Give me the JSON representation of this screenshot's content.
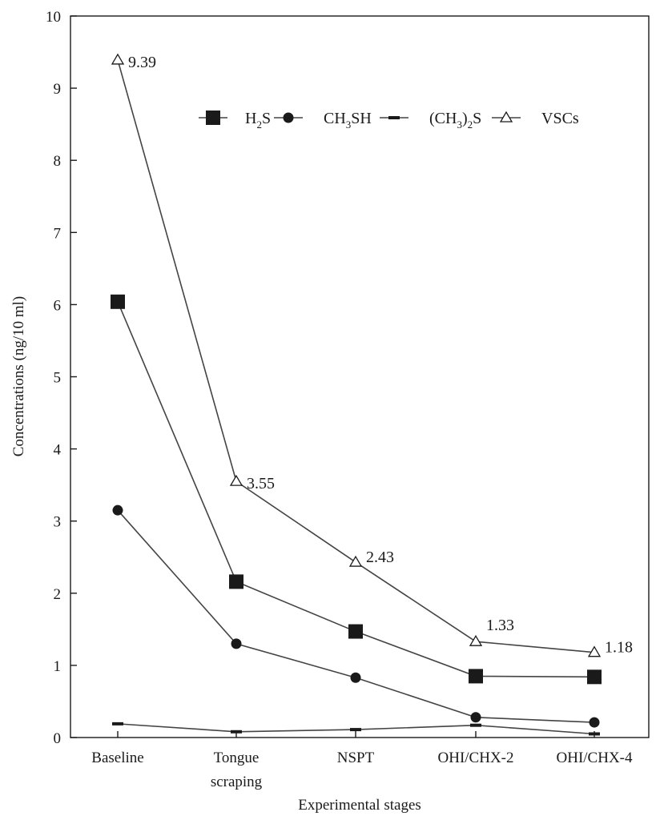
{
  "chart_data": {
    "type": "line",
    "title": "",
    "xlabel": "Experimental stages",
    "ylabel": "Concentrations (ng/10 ml)",
    "ylim": [
      0,
      10
    ],
    "yticks": [
      0,
      1,
      2,
      3,
      4,
      5,
      6,
      7,
      8,
      9,
      10
    ],
    "categories": [
      [
        "Baseline"
      ],
      [
        "Tongue",
        "scraping"
      ],
      [
        "NSPT"
      ],
      [
        "OHI/CHX-2"
      ],
      [
        "OHI/CHX-4"
      ]
    ],
    "series": [
      {
        "name": "H2S",
        "legend_main": "H",
        "legend_sub": "2",
        "legend_tail": "S",
        "marker": "square",
        "values": [
          6.04,
          2.16,
          1.47,
          0.85,
          0.84
        ]
      },
      {
        "name": "CH3SH",
        "legend_main": "CH",
        "legend_sub": "3",
        "legend_tail": "SH",
        "marker": "circle",
        "values": [
          3.15,
          1.3,
          0.83,
          0.28,
          0.21
        ]
      },
      {
        "name": "(CH3)2S",
        "legend_main": "(CH",
        "legend_sub": "3",
        "legend_tail": ")",
        "legend_sub2": "2",
        "legend_tail2": "S",
        "marker": "dash",
        "values": [
          0.19,
          0.08,
          0.11,
          0.17,
          0.05
        ]
      },
      {
        "name": "VSCs",
        "legend_main": "VSCs",
        "marker": "triangle",
        "values": [
          9.39,
          3.55,
          2.43,
          1.33,
          1.18
        ]
      }
    ],
    "data_labels": [
      "9.39",
      "3.55",
      "2.43",
      "1.33",
      "1.18"
    ],
    "legend_position": "top-right",
    "grid": false,
    "colors": {
      "line": "#444444",
      "marker": "#1a1a1a",
      "axis": "#1a1a1a"
    }
  }
}
